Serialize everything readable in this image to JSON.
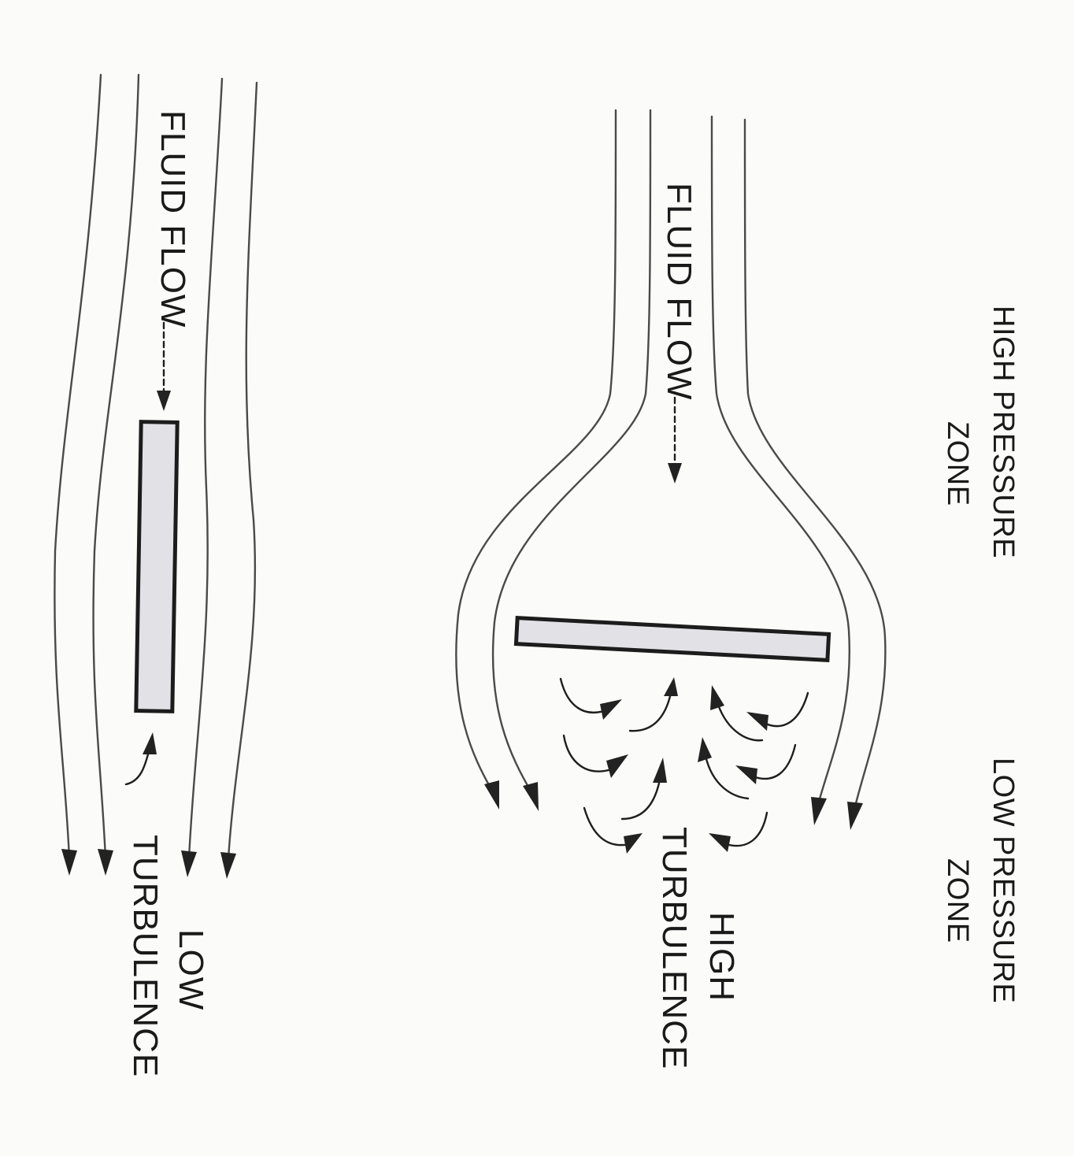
{
  "left_panel": {
    "flow_label": "FLUID FLOW",
    "turbulence_label_line1": "LOW",
    "turbulence_label_line2": "TURBULENCE"
  },
  "right_panel": {
    "flow_label": "FLUID FLOW",
    "high_pressure_line1": "HIGH PRESSURE",
    "high_pressure_line2": "ZONE",
    "low_pressure_line1": "LOW PRESSURE",
    "low_pressure_line2": "ZONE",
    "turbulence_label_line1": "HIGH",
    "turbulence_label_line2": "TURBULENCE"
  }
}
